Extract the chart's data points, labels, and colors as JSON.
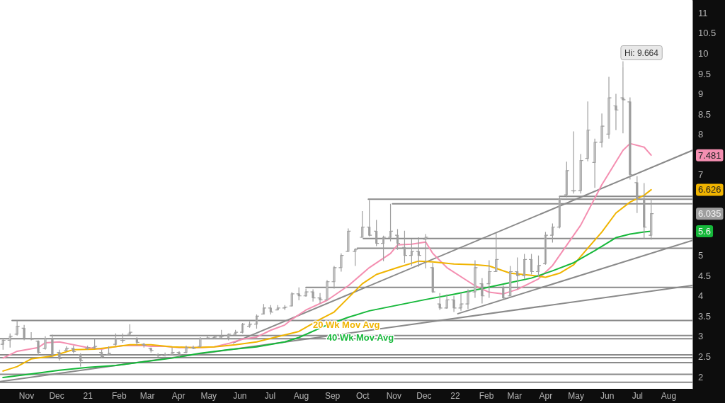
{
  "chart_data": {
    "type": "candlestick",
    "color": "#9e9e9e",
    "x": [
      "2020-10-09",
      "2020-10-16",
      "2020-10-23",
      "2020-10-30",
      "2020-11-06",
      "2020-11-13",
      "2020-11-20",
      "2020-11-27",
      "2020-12-04",
      "2020-12-11",
      "2020-12-18",
      "2020-12-25",
      "2021-01-01",
      "2021-01-08",
      "2021-01-15",
      "2021-01-22",
      "2021-01-29",
      "2021-02-05",
      "2021-02-12",
      "2021-02-19",
      "2021-02-26",
      "2021-03-05",
      "2021-03-12",
      "2021-03-19",
      "2021-03-26",
      "2021-04-02",
      "2021-04-09",
      "2021-04-16",
      "2021-04-23",
      "2021-04-30",
      "2021-05-07",
      "2021-05-14",
      "2021-05-21",
      "2021-05-28",
      "2021-06-04",
      "2021-06-11",
      "2021-06-18",
      "2021-06-25",
      "2021-07-02",
      "2021-07-09",
      "2021-07-16",
      "2021-07-23",
      "2021-07-30",
      "2021-08-06",
      "2021-08-13",
      "2021-08-20",
      "2021-08-27",
      "2021-09-03",
      "2021-09-10",
      "2021-09-17",
      "2021-09-24",
      "2021-10-01",
      "2021-10-08",
      "2021-10-15",
      "2021-10-22",
      "2021-10-29",
      "2021-11-05",
      "2021-11-12",
      "2021-11-19",
      "2021-11-26",
      "2021-12-03",
      "2021-12-10",
      "2021-12-17",
      "2021-12-24",
      "2021-12-31",
      "2022-01-07",
      "2022-01-14",
      "2022-01-21",
      "2022-01-28",
      "2022-02-04",
      "2022-02-11",
      "2022-02-18",
      "2022-02-25",
      "2022-03-04",
      "2022-03-11",
      "2022-03-18",
      "2022-03-25",
      "2022-04-01",
      "2022-04-08",
      "2022-04-15",
      "2022-04-22",
      "2022-04-29",
      "2022-05-06",
      "2022-05-13",
      "2022-05-20",
      "2022-05-27",
      "2022-06-03",
      "2022-06-10",
      "2022-06-17",
      "2022-06-24",
      "2022-07-01",
      "2022-07-08",
      "2022-07-15"
    ],
    "ohlc": [
      [
        2.8,
        2.95,
        2.67,
        2.9
      ],
      [
        2.9,
        3.07,
        2.72,
        3.0
      ],
      [
        3.05,
        3.39,
        3.02,
        3.25
      ],
      [
        3.2,
        3.28,
        2.9,
        2.95
      ],
      [
        2.95,
        3.1,
        2.9,
        2.93
      ],
      [
        2.88,
        2.9,
        2.54,
        2.6
      ],
      [
        2.7,
        3.0,
        2.67,
        2.95
      ],
      [
        2.95,
        3.04,
        2.5,
        2.55
      ],
      [
        2.6,
        2.67,
        2.4,
        2.45
      ],
      [
        2.65,
        2.75,
        2.63,
        2.7
      ],
      [
        2.7,
        2.77,
        2.58,
        2.62
      ],
      [
        2.55,
        2.58,
        2.25,
        2.4
      ],
      [
        2.7,
        2.77,
        2.67,
        2.72
      ],
      [
        2.72,
        2.93,
        2.68,
        2.75
      ],
      [
        2.6,
        2.67,
        2.46,
        2.5
      ],
      [
        2.55,
        2.75,
        2.54,
        2.58
      ],
      [
        2.8,
        3.07,
        2.77,
        2.95
      ],
      [
        2.9,
        3.07,
        2.84,
        2.9
      ],
      [
        3.05,
        3.3,
        3.04,
        3.1
      ],
      [
        2.95,
        2.98,
        2.77,
        2.85
      ],
      [
        2.8,
        2.84,
        2.72,
        2.78
      ],
      [
        2.7,
        2.72,
        2.6,
        2.65
      ],
      [
        2.55,
        2.58,
        2.49,
        2.52
      ],
      [
        2.52,
        2.6,
        2.5,
        2.55
      ],
      [
        2.55,
        2.72,
        2.54,
        2.6
      ],
      [
        2.6,
        2.63,
        2.49,
        2.55
      ],
      [
        2.6,
        2.77,
        2.58,
        2.72
      ],
      [
        2.72,
        2.77,
        2.68,
        2.7
      ],
      [
        2.75,
        2.98,
        2.72,
        2.95
      ],
      [
        2.95,
        3.02,
        2.93,
        2.96
      ],
      [
        2.96,
        3.02,
        2.93,
        2.98
      ],
      [
        2.98,
        3.16,
        2.95,
        3.0
      ],
      [
        2.95,
        3.07,
        2.9,
        3.05
      ],
      [
        3.05,
        3.16,
        3.04,
        3.1
      ],
      [
        3.1,
        3.33,
        3.07,
        3.3
      ],
      [
        3.25,
        3.37,
        3.21,
        3.3
      ],
      [
        3.3,
        3.54,
        3.19,
        3.5
      ],
      [
        3.55,
        3.8,
        3.54,
        3.7
      ],
      [
        3.7,
        3.77,
        3.54,
        3.6
      ],
      [
        3.65,
        3.77,
        3.65,
        3.7
      ],
      [
        3.7,
        3.77,
        3.65,
        3.72
      ],
      [
        3.75,
        4.09,
        3.74,
        4.05
      ],
      [
        4.05,
        4.21,
        3.89,
        4.0
      ],
      [
        4.0,
        4.18,
        3.98,
        4.1
      ],
      [
        4.1,
        4.16,
        3.86,
        3.95
      ],
      [
        3.95,
        4.07,
        3.81,
        3.9
      ],
      [
        3.9,
        4.39,
        3.89,
        4.35
      ],
      [
        4.35,
        4.74,
        4.18,
        4.7
      ],
      [
        4.7,
        5.05,
        4.6,
        5.0
      ],
      [
        5.1,
        5.67,
        5.09,
        5.6
      ],
      [
        5.1,
        5.18,
        4.74,
        5.15
      ],
      [
        5.45,
        6.1,
        5.44,
        5.7
      ],
      [
        5.7,
        6.37,
        5.47,
        5.5
      ],
      [
        5.6,
        5.88,
        5.23,
        5.3
      ],
      [
        5.3,
        5.49,
        4.86,
        5.45
      ],
      [
        5.45,
        6.28,
        5.35,
        5.6
      ],
      [
        5.5,
        5.65,
        5.14,
        5.3
      ],
      [
        5.2,
        5.61,
        4.82,
        5.0
      ],
      [
        5.0,
        5.4,
        4.74,
        5.1
      ],
      [
        5.1,
        5.45,
        4.72,
        5.0
      ],
      [
        5.4,
        5.53,
        4.68,
        5.45
      ],
      [
        4.7,
        4.82,
        4.07,
        4.1
      ],
      [
        3.8,
        4.07,
        3.65,
        3.7
      ],
      [
        3.7,
        4.04,
        3.68,
        3.9
      ],
      [
        3.9,
        4.0,
        3.6,
        3.7
      ],
      [
        3.7,
        4.07,
        3.63,
        3.8
      ],
      [
        3.8,
        4.16,
        3.68,
        4.1
      ],
      [
        4.1,
        4.88,
        3.95,
        4.7
      ],
      [
        4.3,
        4.44,
        3.81,
        4.0
      ],
      [
        4.3,
        4.88,
        3.95,
        4.6
      ],
      [
        4.6,
        5.56,
        4.6,
        4.9
      ],
      [
        4.2,
        4.26,
        3.91,
        3.95
      ],
      [
        4.0,
        4.74,
        4.0,
        4.6
      ],
      [
        4.6,
        4.95,
        4.16,
        4.5
      ],
      [
        4.5,
        5.04,
        4.42,
        4.9
      ],
      [
        4.9,
        5.04,
        4.53,
        4.6
      ],
      [
        4.6,
        5.0,
        4.47,
        4.75
      ],
      [
        4.8,
        5.58,
        4.77,
        5.5
      ],
      [
        5.5,
        5.79,
        5.32,
        5.7
      ],
      [
        5.7,
        6.46,
        5.67,
        6.4
      ],
      [
        6.5,
        7.32,
        6.44,
        7.1
      ],
      [
        6.6,
        8.07,
        6.53,
        6.6
      ],
      [
        6.6,
        7.51,
        6.53,
        7.35
      ],
      [
        7.4,
        8.81,
        7.33,
        8.1
      ],
      [
        7.3,
        7.89,
        6.67,
        7.8
      ],
      [
        7.8,
        8.51,
        7.67,
        8.2
      ],
      [
        8.0,
        9.42,
        7.89,
        8.9
      ],
      [
        8.7,
        9.0,
        8.1,
        8.6
      ],
      [
        8.9,
        9.664,
        8.02,
        8.85
      ],
      [
        8.8,
        8.91,
        6.88,
        7.0
      ],
      [
        6.8,
        6.96,
        6.05,
        6.4
      ],
      [
        6.4,
        6.79,
        5.4,
        5.7
      ],
      [
        5.5,
        6.4,
        5.39,
        6.035
      ]
    ],
    "series": [
      {
        "type": "line",
        "color": "#8a8a8a",
        "x": [
          "2022-04-15",
          "2022-08-25"
        ],
        "values": [
          6.46,
          6.46
        ]
      },
      {
        "type": "line",
        "color": "#8a8a8a",
        "x": [
          "2021-10-07",
          "2022-08-25"
        ],
        "values": [
          6.39,
          6.39
        ]
      },
      {
        "type": "line",
        "color": "#8a8a8a",
        "x": [
          "2021-10-31",
          "2022-08-25"
        ],
        "values": [
          6.28,
          6.28
        ]
      },
      {
        "type": "line",
        "color": "#8a8a8a",
        "x": [
          "2021-10-02",
          "2022-08-25"
        ],
        "values": [
          5.42,
          5.42
        ]
      },
      {
        "type": "line",
        "color": "#8a8a8a",
        "x": [
          "2021-09-26",
          "2022-08-25"
        ],
        "values": [
          5.18,
          5.18
        ]
      },
      {
        "type": "line",
        "color": "#8a8a8a",
        "x": [
          "2021-08-06",
          "2022-08-25"
        ],
        "values": [
          4.21,
          4.21
        ]
      },
      {
        "type": "line",
        "color": "#8a8a8a",
        "x": [
          "2020-10-18",
          "2022-08-25"
        ],
        "values": [
          3.39,
          3.39
        ]
      },
      {
        "type": "line",
        "color": "#8a8a8a",
        "x": [
          "2020-11-25",
          "2022-08-25"
        ],
        "values": [
          3.02,
          3.02
        ]
      },
      {
        "type": "line",
        "color": "#8a8a8a",
        "x": [
          "2020-10-06",
          "2022-08-25"
        ],
        "values": [
          2.94,
          2.94
        ]
      },
      {
        "type": "line",
        "color": "#8a8a8a",
        "x": [
          "2020-10-06",
          "2022-08-25"
        ],
        "values": [
          2.54,
          2.54
        ]
      },
      {
        "type": "line",
        "color": "#8a8a8a",
        "x": [
          "2020-10-06",
          "2022-08-25"
        ],
        "values": [
          2.47,
          2.47
        ]
      },
      {
        "type": "line",
        "color": "#8a8a8a",
        "x": [
          "2020-10-06",
          "2022-08-25"
        ],
        "values": [
          2.35,
          2.35
        ]
      },
      {
        "type": "line",
        "color": "#8a8a8a",
        "x": [
          "2020-10-06",
          "2022-08-25"
        ],
        "values": [
          2.06,
          2.06
        ]
      },
      {
        "type": "line",
        "color": "#8a8a8a",
        "x": [
          "2020-10-06",
          "2022-08-25"
        ],
        "values": [
          1.86,
          1.86
        ]
      },
      {
        "type": "line",
        "color": "#8a8a8a",
        "x": [
          "2020-10-06",
          "2022-08-25"
        ],
        "values": [
          1.88,
          4.26
        ]
      },
      {
        "type": "line",
        "color": "#8a8a8a",
        "x": [
          "2021-05-26",
          "2022-08-25"
        ],
        "values": [
          2.84,
          7.6
        ]
      },
      {
        "type": "line",
        "color": "#8a8a8a",
        "x": [
          "2022-01-04",
          "2022-08-25"
        ],
        "values": [
          3.56,
          5.37
        ]
      },
      {
        "type": "line",
        "color": "#f48fb1",
        "x": [
          "2020-10-09",
          "2020-10-23",
          "2020-11-13",
          "2020-11-20",
          "2020-12-04",
          "2020-12-18",
          "2021-01-01",
          "2021-01-15",
          "2021-01-22",
          "2021-02-05",
          "2021-02-26",
          "2021-03-05",
          "2021-03-19",
          "2021-04-02",
          "2021-04-23",
          "2021-05-07",
          "2021-05-21",
          "2021-06-04",
          "2021-06-18",
          "2021-07-02",
          "2021-07-16",
          "2021-07-23",
          "2021-08-06",
          "2021-08-27",
          "2021-09-17",
          "2021-10-08",
          "2021-10-29",
          "2021-11-05",
          "2021-11-19",
          "2021-12-03",
          "2021-12-10",
          "2021-12-24",
          "2022-01-21",
          "2022-02-04",
          "2022-02-18",
          "2022-03-04",
          "2022-03-25",
          "2022-04-08",
          "2022-05-06",
          "2022-05-27",
          "2022-06-17",
          "2022-06-24",
          "2022-07-08",
          "2022-07-15"
        ],
        "values": [
          2.46,
          2.63,
          2.72,
          2.84,
          2.86,
          2.79,
          2.72,
          2.68,
          2.72,
          2.77,
          2.77,
          2.75,
          2.75,
          2.72,
          2.72,
          2.74,
          2.82,
          2.93,
          2.98,
          3.15,
          3.28,
          3.42,
          3.65,
          3.89,
          4.25,
          4.7,
          5.05,
          5.26,
          5.28,
          5.33,
          5.05,
          4.7,
          4.25,
          4.09,
          4.05,
          4.16,
          4.42,
          4.75,
          5.75,
          6.75,
          7.6,
          7.77,
          7.68,
          7.481
        ]
      },
      {
        "type": "line",
        "name": "20 Wk Mov Avg",
        "color": "#f0b400",
        "x": [
          "2020-10-09",
          "2020-10-23",
          "2020-11-06",
          "2020-11-27",
          "2020-12-18",
          "2021-01-08",
          "2021-01-22",
          "2021-02-12",
          "2021-03-05",
          "2021-03-26",
          "2021-04-16",
          "2021-05-07",
          "2021-05-28",
          "2021-06-18",
          "2021-07-02",
          "2021-07-30",
          "2021-08-20",
          "2021-09-03",
          "2021-09-17",
          "2021-10-01",
          "2021-10-15",
          "2021-11-05",
          "2021-11-26",
          "2021-12-10",
          "2021-12-31",
          "2022-01-21",
          "2022-02-04",
          "2022-02-25",
          "2022-03-18",
          "2022-04-01",
          "2022-04-15",
          "2022-04-29",
          "2022-05-13",
          "2022-05-27",
          "2022-06-10",
          "2022-06-24",
          "2022-07-08",
          "2022-07-15"
        ],
        "values": [
          2.14,
          2.25,
          2.44,
          2.51,
          2.67,
          2.68,
          2.72,
          2.79,
          2.79,
          2.74,
          2.72,
          2.74,
          2.79,
          2.86,
          2.95,
          3.12,
          3.42,
          3.6,
          3.95,
          4.3,
          4.53,
          4.7,
          4.86,
          4.84,
          4.79,
          4.77,
          4.74,
          4.56,
          4.51,
          4.46,
          4.56,
          4.77,
          5.18,
          5.58,
          6.05,
          6.32,
          6.49,
          6.626
        ]
      },
      {
        "type": "line",
        "name": "40 Wk Mov Avg",
        "color": "#16b83a",
        "x": [
          "2020-10-09",
          "2020-11-06",
          "2020-12-04",
          "2021-01-01",
          "2021-01-29",
          "2021-02-26",
          "2021-03-26",
          "2021-04-23",
          "2021-05-21",
          "2021-06-18",
          "2021-07-16",
          "2021-07-30",
          "2021-08-27",
          "2021-09-17",
          "2021-10-08",
          "2021-11-05",
          "2021-12-03",
          "2021-12-31",
          "2022-01-28",
          "2022-02-25",
          "2022-03-18",
          "2022-04-08",
          "2022-04-29",
          "2022-05-20",
          "2022-06-10",
          "2022-06-24",
          "2022-07-08",
          "2022-07-15"
        ],
        "values": [
          1.98,
          2.07,
          2.16,
          2.23,
          2.28,
          2.37,
          2.46,
          2.58,
          2.67,
          2.74,
          2.86,
          2.97,
          3.28,
          3.47,
          3.63,
          3.77,
          3.91,
          4.04,
          4.18,
          4.33,
          4.44,
          4.62,
          4.82,
          5.12,
          5.44,
          5.53,
          5.58,
          5.6
        ]
      }
    ],
    "xlim": [
      "2020-10-06",
      "2022-08-25"
    ],
    "xticks": [
      {
        "value": "2020-11-01",
        "label": "Nov"
      },
      {
        "value": "2020-12-01",
        "label": "Dec"
      },
      {
        "value": "2021-01-01",
        "label": "21"
      },
      {
        "value": "2021-02-01",
        "label": "Feb"
      },
      {
        "value": "2021-03-01",
        "label": "Mar"
      },
      {
        "value": "2021-04-01",
        "label": "Apr"
      },
      {
        "value": "2021-05-01",
        "label": "May"
      },
      {
        "value": "2021-06-01",
        "label": "Jun"
      },
      {
        "value": "2021-07-01",
        "label": "Jul"
      },
      {
        "value": "2021-08-01",
        "label": "Aug"
      },
      {
        "value": "2021-09-01",
        "label": "Sep"
      },
      {
        "value": "2021-10-01",
        "label": "Oct"
      },
      {
        "value": "2021-11-01",
        "label": "Nov"
      },
      {
        "value": "2021-12-01",
        "label": "Dec"
      },
      {
        "value": "2022-01-01",
        "label": "22"
      },
      {
        "value": "2022-02-01",
        "label": "Feb"
      },
      {
        "value": "2022-03-01",
        "label": "Mar"
      },
      {
        "value": "2022-04-01",
        "label": "Apr"
      },
      {
        "value": "2022-05-01",
        "label": "May"
      },
      {
        "value": "2022-06-01",
        "label": "Jun"
      },
      {
        "value": "2022-07-01",
        "label": "Jul"
      },
      {
        "value": "2022-08-01",
        "label": "Aug"
      }
    ],
    "ylim": [
      1.7,
      11.32
    ],
    "yticks": [
      2,
      2.5,
      3,
      3.5,
      4,
      4.5,
      5,
      7,
      8,
      8.5,
      9,
      9.5,
      10,
      10.5,
      11
    ],
    "annotations": [
      {
        "text": "Hi: 9.664",
        "x": "2022-06-17",
        "y": 9.664
      },
      "7.481",
      "6.626",
      "6.035",
      "5.6"
    ]
  }
}
